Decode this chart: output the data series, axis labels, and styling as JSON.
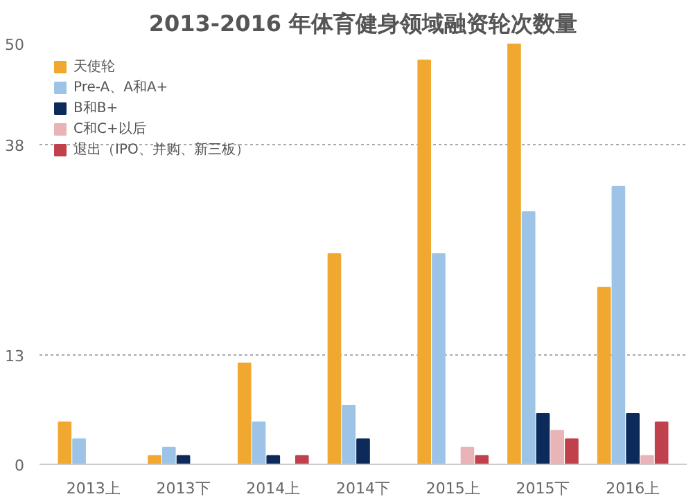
{
  "chart_data": {
    "type": "bar",
    "title": "2013-2016 年体育健身领域融资轮次数量",
    "categories": [
      "2013上",
      "2013下",
      "2014上",
      "2014下",
      "2015上",
      "2015下",
      "2016上"
    ],
    "series": [
      {
        "name": "天使轮",
        "color": "#f0a830",
        "values": [
          5,
          1,
          12,
          25,
          48,
          50,
          21
        ]
      },
      {
        "name": "Pre-A、A和A+",
        "color": "#9dc3e6",
        "values": [
          3,
          2,
          5,
          7,
          25,
          30,
          33
        ]
      },
      {
        "name": "B和B+",
        "color": "#0d2b5a",
        "values": [
          0,
          1,
          1,
          3,
          0,
          6,
          6
        ]
      },
      {
        "name": "C和C+以后",
        "color": "#e8b4b8",
        "values": [
          0,
          0,
          0,
          0,
          2,
          4,
          1
        ]
      },
      {
        "name": "退出（IPO、并购、新三板）",
        "color": "#c0404c",
        "values": [
          0,
          0,
          1,
          0,
          1,
          3,
          5
        ]
      }
    ],
    "ylim": [
      0,
      50
    ],
    "yticks": [
      0,
      13,
      38,
      50
    ],
    "grid": "y",
    "legend": "top left"
  }
}
